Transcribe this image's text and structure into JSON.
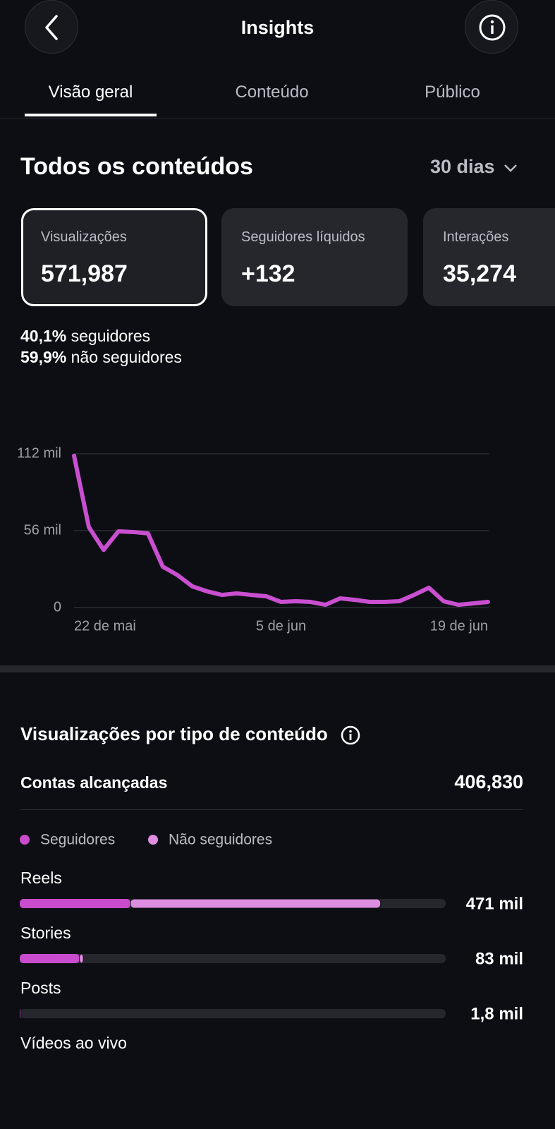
{
  "header": {
    "title": "Insights"
  },
  "tabs": [
    "Visão geral",
    "Conteúdo",
    "Público"
  ],
  "section": {
    "title": "Todos os conteúdos",
    "period": "30 dias"
  },
  "cards": [
    {
      "label": "Visualizações",
      "value": "571,987"
    },
    {
      "label": "Seguidores líquidos",
      "value": "+132"
    },
    {
      "label": "Interações",
      "value": "35,274"
    }
  ],
  "split": [
    {
      "value": "40,1%",
      "label": "seguidores"
    },
    {
      "value": "59,9%",
      "label": "não seguidores"
    }
  ],
  "breakdown": {
    "title": "Visualizações por tipo de conteúdo",
    "reach_label": "Contas alcançadas",
    "reach_value": "406,830"
  },
  "chart_data": [
    {
      "type": "line",
      "color": "#c94fd0",
      "categories": [
        "22 de mai",
        null,
        null,
        null,
        null,
        null,
        null,
        null,
        null,
        null,
        null,
        null,
        null,
        null,
        "5 de jun",
        null,
        null,
        null,
        null,
        null,
        null,
        null,
        null,
        null,
        null,
        null,
        null,
        null,
        "19 de jun"
      ],
      "values": [
        110.5,
        58.6,
        42,
        55.5,
        55,
        54,
        29.8,
        23.6,
        15.4,
        11.8,
        9.2,
        10.3,
        9.2,
        8.2,
        4.1,
        4.6,
        4.1,
        2,
        6.7,
        5.6,
        4.1,
        4.1,
        4.6,
        9.2,
        14.4,
        4.6,
        2,
        3,
        4.1
      ],
      "ylim": [
        0,
        112
      ],
      "yticks": [
        0,
        {
          "value": 56,
          "label": "56 mil"
        },
        {
          "value": 112,
          "label": "112 mil"
        }
      ],
      "grid": true
    },
    {
      "type": "stacked-bar",
      "categories": [
        "Reels",
        "Stories",
        "Posts",
        "Vídeos ao vivo"
      ],
      "series": [
        {
          "name": "Seguidores",
          "color": "#c94ccc",
          "values": [
            144.5,
            78,
            1.2,
            null
          ]
        },
        {
          "name": "Não seguidores",
          "color": "#de8ee0",
          "values": [
            326.5,
            5,
            0.6,
            null
          ]
        }
      ],
      "values": [
        471,
        83,
        1.8,
        null
      ],
      "value_labels": [
        "471 mil",
        "83 mil",
        "1,8 mil",
        null
      ],
      "xlim": [
        0,
        556
      ]
    }
  ]
}
